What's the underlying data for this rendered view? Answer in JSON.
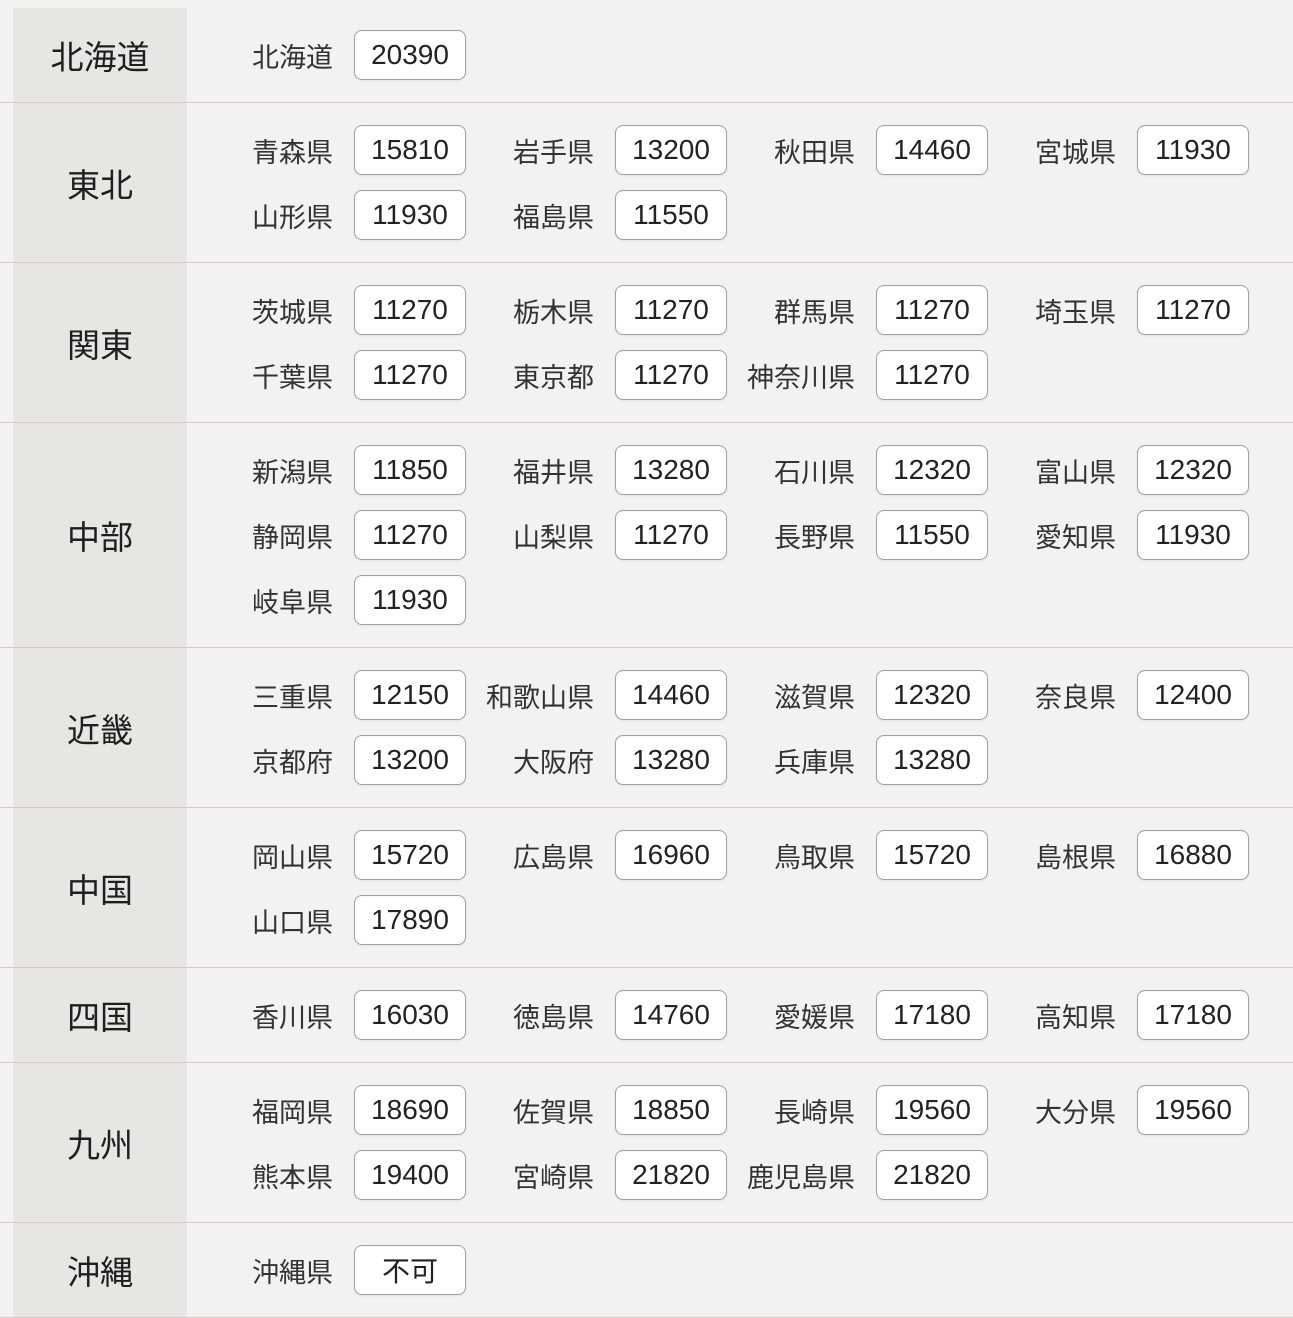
{
  "table": {
    "regions": [
      {
        "name": "北海道",
        "prefectures": [
          {
            "label": "北海道",
            "value": "20390"
          }
        ]
      },
      {
        "name": "東北",
        "prefectures": [
          {
            "label": "青森県",
            "value": "15810"
          },
          {
            "label": "岩手県",
            "value": "13200"
          },
          {
            "label": "秋田県",
            "value": "14460"
          },
          {
            "label": "宮城県",
            "value": "11930"
          },
          {
            "label": "山形県",
            "value": "11930"
          },
          {
            "label": "福島県",
            "value": "11550"
          }
        ]
      },
      {
        "name": "関東",
        "prefectures": [
          {
            "label": "茨城県",
            "value": "11270"
          },
          {
            "label": "栃木県",
            "value": "11270"
          },
          {
            "label": "群馬県",
            "value": "11270"
          },
          {
            "label": "埼玉県",
            "value": "11270"
          },
          {
            "label": "千葉県",
            "value": "11270"
          },
          {
            "label": "東京都",
            "value": "11270"
          },
          {
            "label": "神奈川県",
            "value": "11270"
          }
        ]
      },
      {
        "name": "中部",
        "prefectures": [
          {
            "label": "新潟県",
            "value": "11850"
          },
          {
            "label": "福井県",
            "value": "13280"
          },
          {
            "label": "石川県",
            "value": "12320"
          },
          {
            "label": "富山県",
            "value": "12320"
          },
          {
            "label": "静岡県",
            "value": "11270"
          },
          {
            "label": "山梨県",
            "value": "11270"
          },
          {
            "label": "長野県",
            "value": "11550"
          },
          {
            "label": "愛知県",
            "value": "11930"
          },
          {
            "label": "岐阜県",
            "value": "11930"
          }
        ]
      },
      {
        "name": "近畿",
        "prefectures": [
          {
            "label": "三重県",
            "value": "12150"
          },
          {
            "label": "和歌山県",
            "value": "14460"
          },
          {
            "label": "滋賀県",
            "value": "12320"
          },
          {
            "label": "奈良県",
            "value": "12400"
          },
          {
            "label": "京都府",
            "value": "13200"
          },
          {
            "label": "大阪府",
            "value": "13280"
          },
          {
            "label": "兵庫県",
            "value": "13280"
          }
        ]
      },
      {
        "name": "中国",
        "prefectures": [
          {
            "label": "岡山県",
            "value": "15720"
          },
          {
            "label": "広島県",
            "value": "16960"
          },
          {
            "label": "鳥取県",
            "value": "15720"
          },
          {
            "label": "島根県",
            "value": "16880"
          },
          {
            "label": "山口県",
            "value": "17890"
          }
        ]
      },
      {
        "name": "四国",
        "prefectures": [
          {
            "label": "香川県",
            "value": "16030"
          },
          {
            "label": "徳島県",
            "value": "14760"
          },
          {
            "label": "愛媛県",
            "value": "17180"
          },
          {
            "label": "高知県",
            "value": "17180"
          }
        ]
      },
      {
        "name": "九州",
        "prefectures": [
          {
            "label": "福岡県",
            "value": "18690"
          },
          {
            "label": "佐賀県",
            "value": "18850"
          },
          {
            "label": "長崎県",
            "value": "19560"
          },
          {
            "label": "大分県",
            "value": "19560"
          },
          {
            "label": "熊本県",
            "value": "19400"
          },
          {
            "label": "宮崎県",
            "value": "21820"
          },
          {
            "label": "鹿児島県",
            "value": "21820"
          }
        ]
      },
      {
        "name": "沖縄",
        "prefectures": [
          {
            "label": "沖縄県",
            "value": "不可"
          }
        ]
      }
    ]
  },
  "colors": {
    "page_bg": "#f3f2f0",
    "region_cell_bg": "#e8e6e3",
    "divider": "#d0cdca",
    "box_border": "#a3a19e",
    "box_bg": "#ffffff",
    "text": "#2b2b2b"
  }
}
